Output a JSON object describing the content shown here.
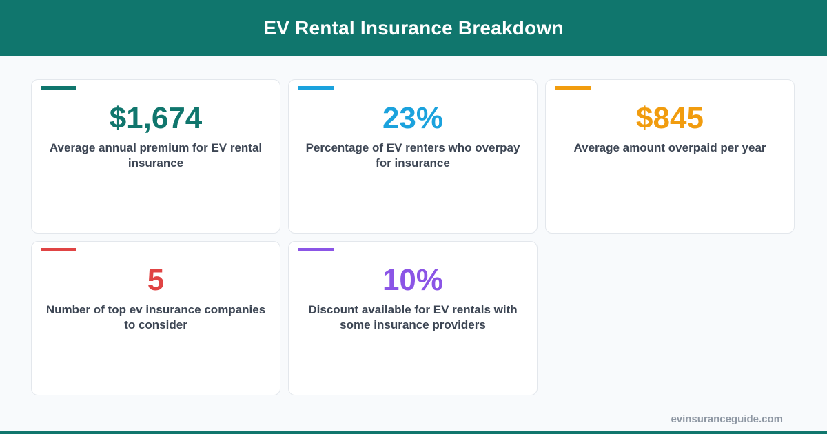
{
  "header": {
    "title": "EV Rental Insurance Breakdown",
    "background_color": "#10766d"
  },
  "cards": [
    {
      "value": "$1,674",
      "description": "Average annual premium for EV rental insurance",
      "color": "#10766d"
    },
    {
      "value": "23%",
      "description": "Percentage of EV renters who overpay for insurance",
      "color": "#1ba2dd"
    },
    {
      "value": "$845",
      "description": "Average amount overpaid per year",
      "color": "#f19c0e"
    },
    {
      "value": "5",
      "description": "Number of top ev insurance companies to consider",
      "color": "#e04444"
    },
    {
      "value": "10%",
      "description": "Discount available for EV rentals with some insurance providers",
      "color": "#8b55e6"
    }
  ],
  "footer": {
    "url": "evinsuranceguide.com"
  }
}
